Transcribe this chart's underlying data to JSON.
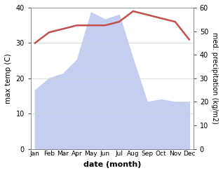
{
  "months": [
    "Jan",
    "Feb",
    "Mar",
    "Apr",
    "May",
    "Jun",
    "Jul",
    "Aug",
    "Sep",
    "Oct",
    "Nov",
    "Dec"
  ],
  "temperature": [
    30,
    33,
    34,
    35,
    35,
    35,
    36,
    39,
    38,
    37,
    36,
    31
  ],
  "precipitation": [
    25,
    30,
    32,
    38,
    58,
    55,
    57,
    38,
    20,
    21,
    20,
    20
  ],
  "temp_color": "#c0504d",
  "precip_fill_color": "#c5cef0",
  "left_ylim": [
    0,
    40
  ],
  "right_ylim": [
    0,
    60
  ],
  "left_ylabel": "max temp (C)",
  "right_ylabel": "med. precipitation (kg/m2)",
  "xlabel": "date (month)",
  "axes_bg": "#ffffff"
}
